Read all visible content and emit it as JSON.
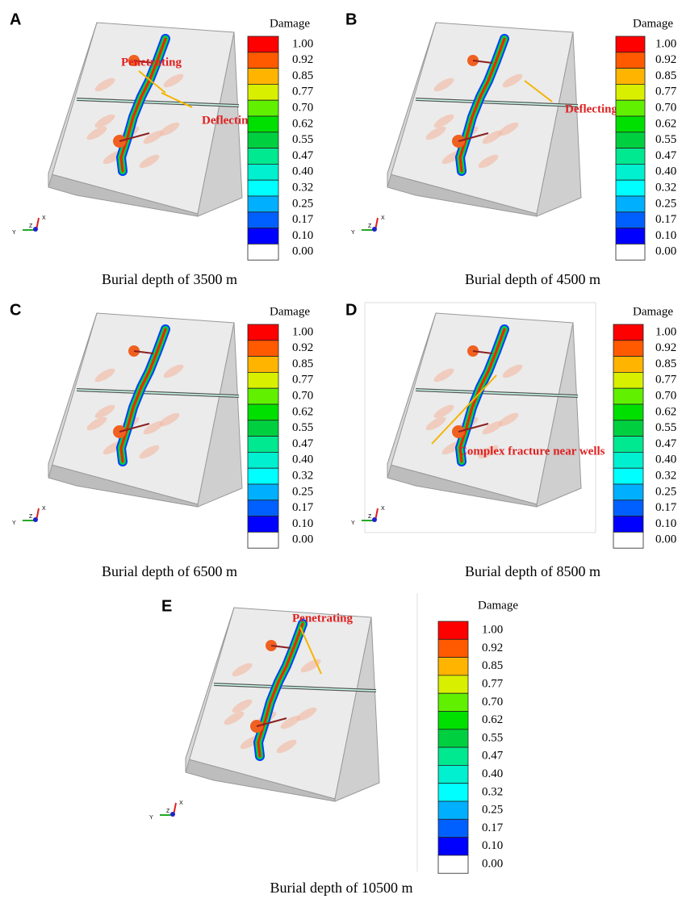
{
  "colorbar": {
    "colors": [
      "#ff0000",
      "#ff5a00",
      "#ffb400",
      "#d8f000",
      "#60f000",
      "#00e000",
      "#00d040",
      "#00e890",
      "#00f0d0",
      "#00ffff",
      "#00b0ff",
      "#0060ff",
      "#0000ff",
      "#ffffff"
    ]
  },
  "panels": [
    {
      "label": "A",
      "legend_title": "Damage",
      "legend_labels": [
        "1.00",
        "0.92",
        "0.85",
        "0.77",
        "0.70",
        "0.62",
        "0.55",
        "0.47",
        "0.40",
        "0.32",
        "0.25",
        "0.17",
        "0.10",
        "0.00"
      ],
      "axis_labels": [
        "Y",
        "Z",
        "X"
      ],
      "annotations": [
        "Penetrating",
        "Deflecting"
      ],
      "caption": "Burial depth of 3500 m"
    },
    {
      "label": "B",
      "legend_title": "Damage",
      "legend_labels": [
        "1.00",
        "0.92",
        "0.85",
        "0.77",
        "0.70",
        "0.62",
        "0.55",
        "0.47",
        "0.40",
        "0.32",
        "0.25",
        "0.17",
        "0.10",
        "0.00"
      ],
      "axis_labels": [
        "Y",
        "Z",
        "X"
      ],
      "annotations": [
        "Deflecting"
      ],
      "caption": "Burial depth of 4500 m"
    },
    {
      "label": "C",
      "legend_title": "Damage",
      "legend_labels": [
        "1.00",
        "0.92",
        "0.85",
        "0.77",
        "0.70",
        "0.62",
        "0.55",
        "0.47",
        "0.40",
        "0.32",
        "0.25",
        "0.17",
        "0.10",
        "0.00"
      ],
      "axis_labels": [
        "Y",
        "Z",
        "X"
      ],
      "annotations": [],
      "caption": "Burial depth of 6500 m"
    },
    {
      "label": "D",
      "legend_title": "Damage",
      "legend_labels": [
        "1.00",
        "0.92",
        "0.85",
        "0.77",
        "0.70",
        "0.62",
        "0.55",
        "0.47",
        "0.40",
        "0.32",
        "0.25",
        "0.17",
        "0.10",
        "0.00"
      ],
      "axis_labels": [
        "Y",
        "Z",
        "X"
      ],
      "annotations": [
        "Complex fracture near wells"
      ],
      "caption": "Burial depth of 8500 m"
    },
    {
      "label": "E",
      "legend_title": "Damage",
      "legend_labels": [
        "1.00",
        "0.92",
        "0.85",
        "0.77",
        "0.70",
        "0.62",
        "0.55",
        "0.47",
        "0.40",
        "0.32",
        "0.25",
        "0.17",
        "0.10",
        "0.00"
      ],
      "axis_labels": [
        "Y",
        "Z",
        "X"
      ],
      "annotations": [
        "Penetrating"
      ],
      "caption": "Burial depth of 10500 m"
    }
  ]
}
